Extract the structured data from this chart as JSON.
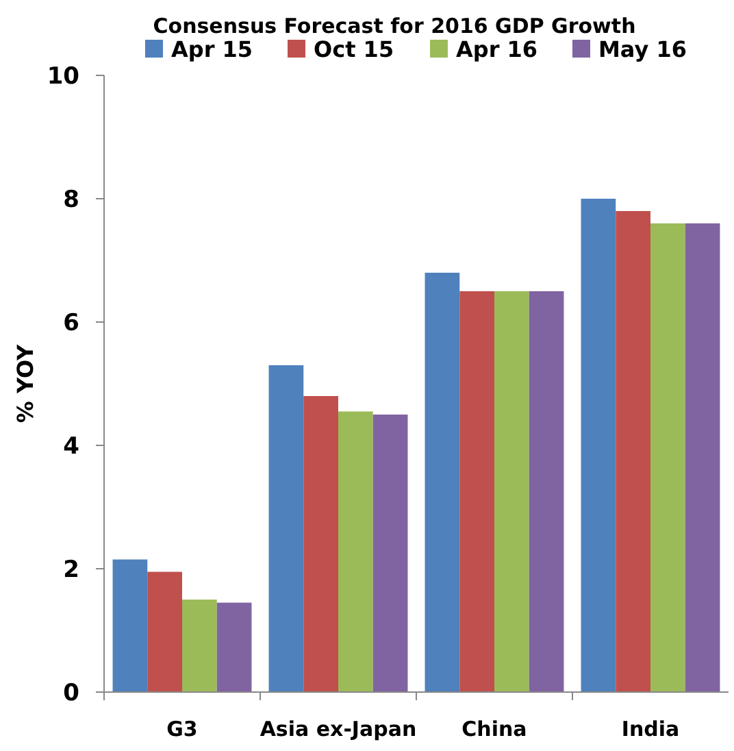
{
  "chart_data": {
    "type": "bar",
    "title": "Consensus Forecast for 2016 GDP Growth",
    "ylabel": "% YOY",
    "categories": [
      "G3",
      "Asia ex-Japan",
      "China",
      "India"
    ],
    "series": [
      {
        "name": "Apr 15",
        "color": "#4f81bd",
        "values": [
          2.15,
          5.3,
          6.8,
          8.0
        ]
      },
      {
        "name": "Oct 15",
        "color": "#c0504d",
        "values": [
          1.95,
          4.8,
          6.5,
          7.8
        ]
      },
      {
        "name": "Apr 16",
        "color": "#9bbb59",
        "values": [
          1.5,
          4.55,
          6.5,
          7.6
        ]
      },
      {
        "name": "May 16",
        "color": "#8064a2",
        "values": [
          1.45,
          4.5,
          6.5,
          7.6
        ]
      }
    ],
    "ylim": [
      0,
      10
    ],
    "yticks": [
      0,
      2,
      4,
      6,
      8,
      10
    ],
    "grid": false,
    "legend": "top"
  }
}
